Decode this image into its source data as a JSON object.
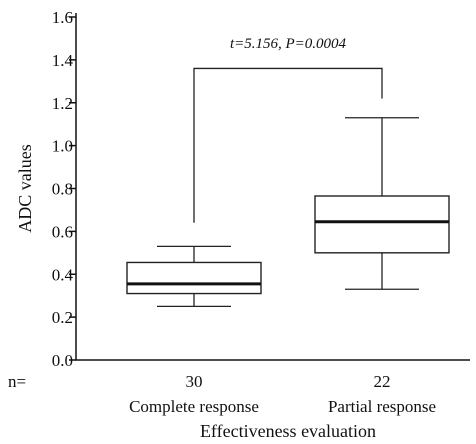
{
  "chart_data": {
    "type": "box",
    "ylabel": "ADC values",
    "xlabel": "Effectiveness evaluation",
    "ylim": [
      0.0,
      1.6
    ],
    "yticks": [
      "0.0",
      "0.2",
      "0.4",
      "0.6",
      "0.8",
      "1.0",
      "1.2",
      "1.4",
      "1.6"
    ],
    "n_prefix": "n=",
    "categories": [
      "Complete response",
      "Partial response"
    ],
    "n_values": [
      "30",
      "22"
    ],
    "boxes": [
      {
        "min": 0.25,
        "q1": 0.31,
        "median": 0.355,
        "q3": 0.455,
        "max": 0.53
      },
      {
        "min": 0.33,
        "q1": 0.5,
        "median": 0.645,
        "q3": 0.765,
        "max": 1.13
      }
    ],
    "bracket": {
      "left_y": 0.64,
      "right_y": 1.22,
      "top_y": 1.36
    },
    "annotation": "t=5.156, P=0.0004"
  }
}
